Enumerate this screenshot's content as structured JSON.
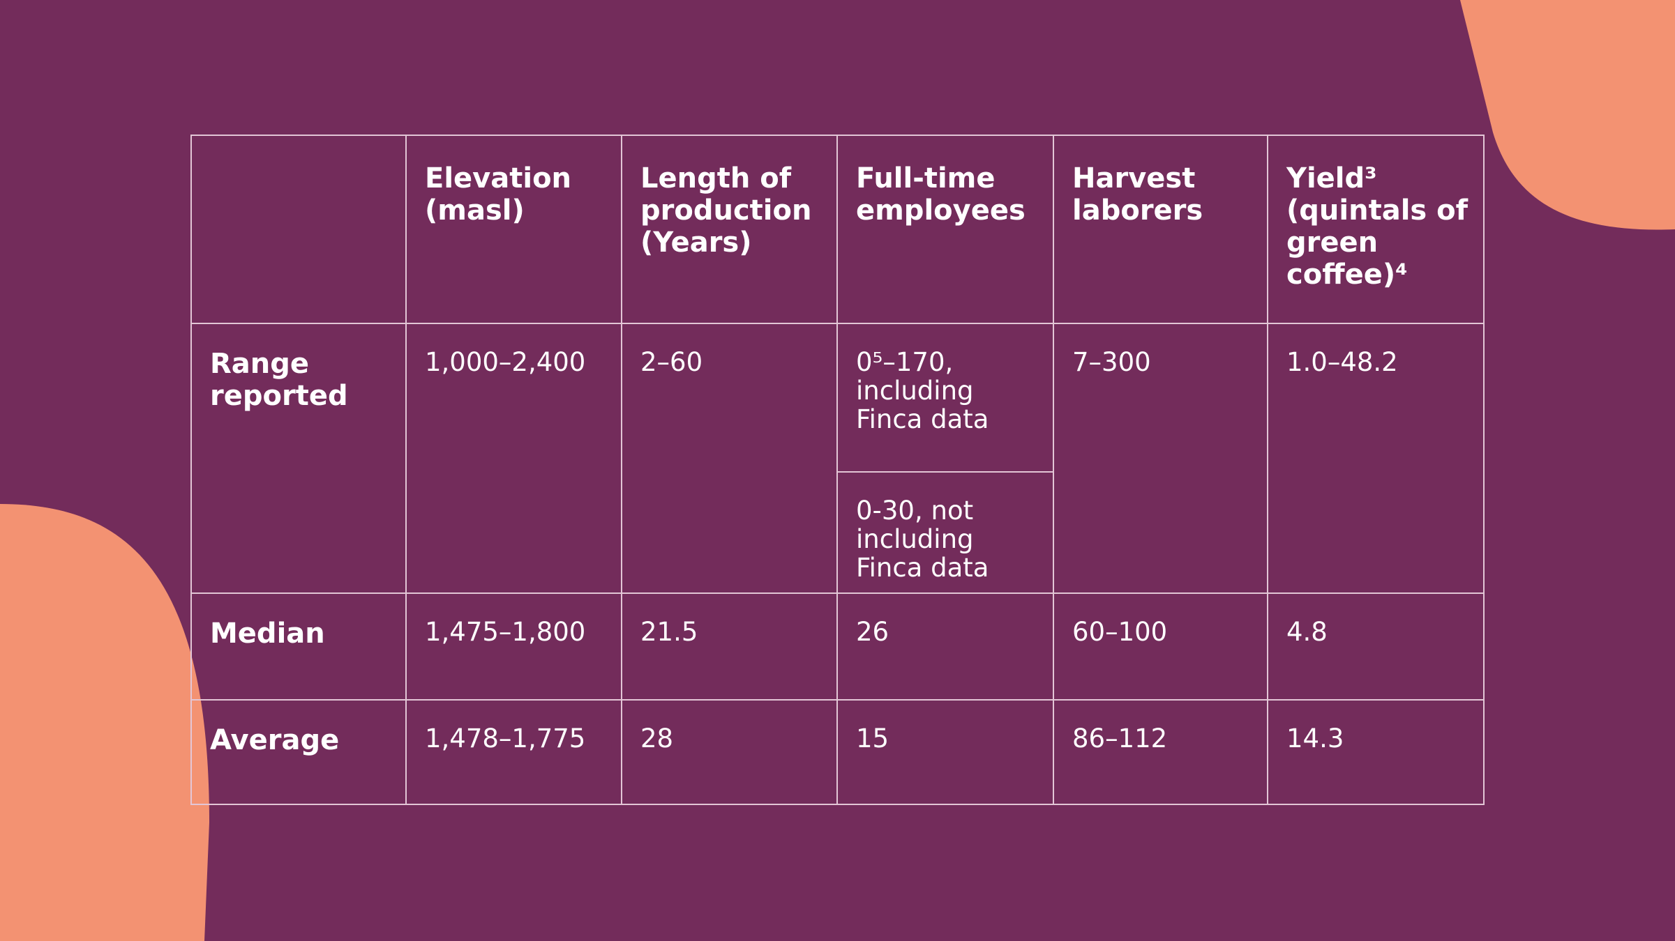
{
  "table": {
    "columns": [
      "Elevation (masl)",
      "Length of production (Years)",
      "Full-time employees",
      "Harvest laborers",
      "Yield³ (quintals of green coffee)⁴"
    ],
    "rows": [
      {
        "label": "Range reported",
        "cells": [
          "1,000–2,400",
          "2–60",
          [
            "0⁵–170, including Finca data",
            "0-30, not including Finca data"
          ],
          "7–300",
          "1.0–48.2"
        ]
      },
      {
        "label": "Median",
        "cells": [
          "1,475–1,800",
          "21.5",
          "26",
          "60–100",
          "4.8"
        ]
      },
      {
        "label": "Average",
        "cells": [
          "1,478–1,775",
          "28",
          "15",
          "86–112",
          "14.3"
        ]
      }
    ]
  }
}
